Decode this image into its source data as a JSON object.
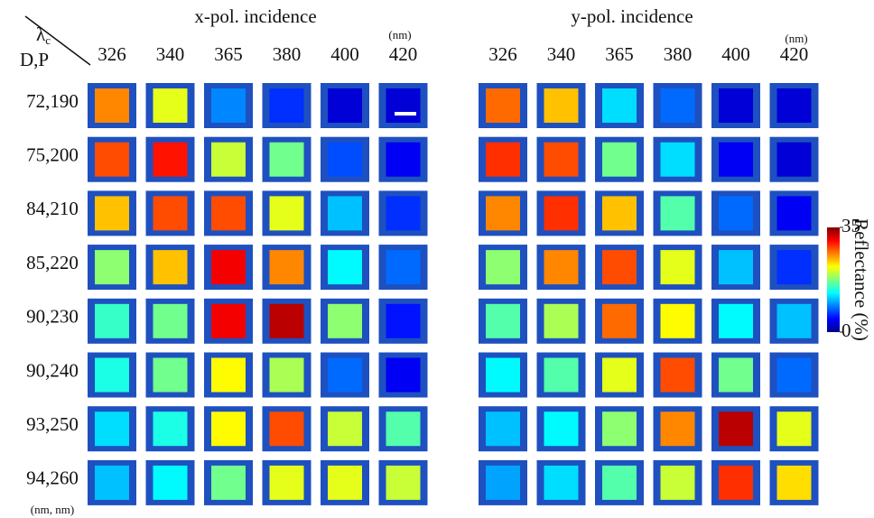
{
  "chart_data": [
    {
      "type": "heatmap",
      "title": "x-pol. incidence",
      "x_label_symbol": "λ",
      "x_label_subscript": "c",
      "x_unit": "(nm)",
      "y_label": "D,P",
      "y_unit": "(nm, nm)",
      "categories": [
        "326",
        "340",
        "365",
        "380",
        "400",
        "420"
      ],
      "rows": [
        "72,190",
        "75,200",
        "84,210",
        "85,220",
        "90,230",
        "90,240",
        "93,250",
        "94,260"
      ],
      "values": [
        [
          26,
          21,
          9,
          6,
          3,
          3
        ],
        [
          28,
          30,
          20,
          17,
          7,
          4
        ],
        [
          24,
          28,
          28,
          21,
          11,
          6
        ],
        [
          18,
          24,
          31,
          26,
          13,
          8
        ],
        [
          15,
          17,
          31,
          33,
          18,
          5
        ],
        [
          14,
          17,
          22,
          19,
          8,
          4
        ],
        [
          12,
          14,
          22,
          28,
          20,
          16
        ],
        [
          11,
          13,
          17,
          21,
          21,
          20
        ]
      ]
    },
    {
      "type": "heatmap",
      "title": "y-pol. incidence",
      "x_unit": "(nm)",
      "categories": [
        "326",
        "340",
        "365",
        "380",
        "400",
        "420"
      ],
      "values": [
        [
          27,
          24,
          12,
          8,
          3,
          3
        ],
        [
          29,
          28,
          17,
          12,
          4,
          3
        ],
        [
          26,
          29,
          24,
          16,
          8,
          4
        ],
        [
          18,
          26,
          28,
          21,
          11,
          6
        ],
        [
          16,
          19,
          27,
          22,
          13,
          11
        ],
        [
          13,
          16,
          21,
          28,
          17,
          8
        ],
        [
          11,
          13,
          18,
          26,
          33,
          21
        ],
        [
          10,
          12,
          16,
          20,
          29,
          23
        ]
      ],
      "colorbar": {
        "label": "Reflectance (%)",
        "lim": [
          0,
          35
        ],
        "ticks": [
          0,
          35
        ]
      }
    }
  ]
}
